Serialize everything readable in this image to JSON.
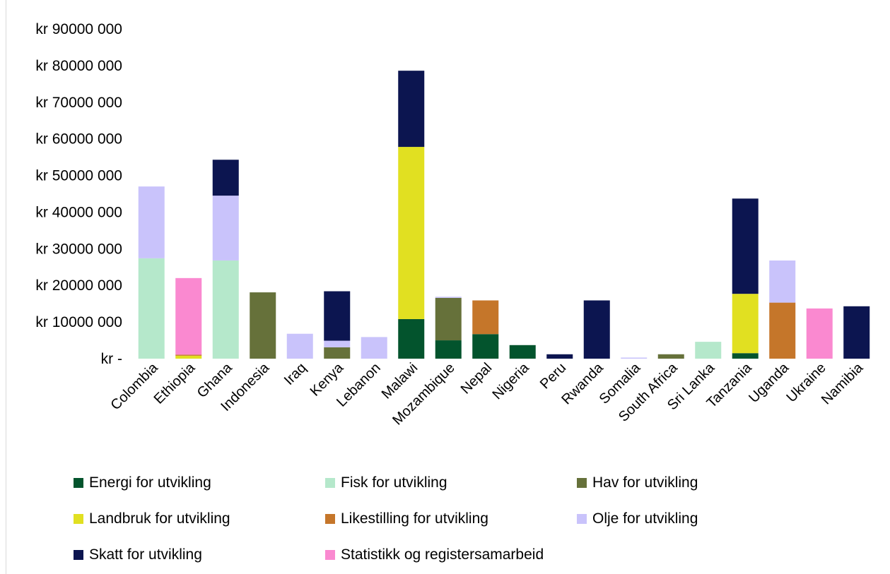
{
  "chart_data": {
    "type": "bar",
    "stacked": true,
    "title": "",
    "xlabel": "",
    "ylabel": "",
    "ylim": [
      0,
      90000000
    ],
    "y_tick_labels": [
      "kr -",
      "kr 10000 000",
      "kr 20000 000",
      "kr 30000 000",
      "kr 40000 000",
      "kr 50000 000",
      "kr 60000 000",
      "kr 70000 000",
      "kr 80000 000",
      "kr 90000 000"
    ],
    "y_ticks": [
      0,
      10000000,
      20000000,
      30000000,
      40000000,
      50000000,
      60000000,
      70000000,
      80000000,
      90000000
    ],
    "grid": false,
    "legend_position": "bottom",
    "categories": [
      "Colombia",
      "Ethiopia",
      "Ghana",
      "Indonesia",
      "Iraq",
      "Kenya",
      "Lebanon",
      "Malawi",
      "Mozambique",
      "Nepal",
      "Nigeria",
      "Peru",
      "Rwanda",
      "Somalia",
      "South Africa",
      "Sri Lanka",
      "Tanzania",
      "Uganda",
      "Ukraine",
      "Namibia"
    ],
    "series": [
      {
        "name": "Energi for utvikling",
        "color": "#03542D",
        "values": [
          0,
          0,
          0,
          0,
          0,
          0,
          0,
          10800000,
          5000000,
          6700000,
          3700000,
          0,
          0,
          0,
          0,
          0,
          1500000,
          0,
          0,
          0
        ]
      },
      {
        "name": "Fisk for utvikling",
        "color": "#B5E8CB",
        "values": [
          27400000,
          0,
          26800000,
          0,
          0,
          0,
          0,
          0,
          0,
          0,
          0,
          0,
          0,
          0,
          0,
          4600000,
          0,
          0,
          0,
          0
        ]
      },
      {
        "name": "Hav for utvikling",
        "color": "#66713A",
        "values": [
          0,
          0,
          0,
          18100000,
          0,
          3100000,
          0,
          0,
          11600000,
          0,
          0,
          0,
          0,
          0,
          1200000,
          0,
          0,
          0,
          0,
          0
        ]
      },
      {
        "name": "Landbruk for utvikling",
        "color": "#E1E021",
        "values": [
          0,
          800000,
          0,
          0,
          0,
          0,
          0,
          47000000,
          0,
          0,
          0,
          0,
          0,
          0,
          0,
          0,
          16200000,
          0,
          0,
          0
        ]
      },
      {
        "name": "Likestilling for utvikling",
        "color": "#C5762A",
        "values": [
          0,
          300000,
          0,
          0,
          0,
          0,
          0,
          0,
          0,
          9200000,
          0,
          0,
          0,
          0,
          0,
          0,
          0,
          15300000,
          0,
          0
        ]
      },
      {
        "name": "Olje for utvikling",
        "color": "#C9C3FB",
        "values": [
          19600000,
          0,
          17700000,
          0,
          6800000,
          1800000,
          5900000,
          0,
          300000,
          0,
          0,
          0,
          0,
          300000,
          0,
          0,
          0,
          11500000,
          0,
          0
        ]
      },
      {
        "name": "Skatt for utvikling",
        "color": "#0C1550",
        "values": [
          0,
          0,
          9800000,
          0,
          0,
          13500000,
          0,
          20800000,
          0,
          0,
          0,
          1200000,
          15900000,
          0,
          0,
          0,
          26000000,
          0,
          0,
          14300000
        ]
      },
      {
        "name": "Statistikk og registersamarbeid",
        "color": "#FA89D0",
        "values": [
          0,
          20900000,
          0,
          0,
          0,
          0,
          0,
          0,
          0,
          0,
          0,
          0,
          0,
          0,
          0,
          0,
          0,
          0,
          13700000,
          0
        ]
      }
    ]
  }
}
